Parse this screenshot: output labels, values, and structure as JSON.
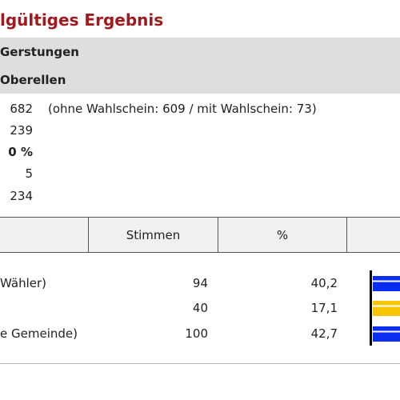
{
  "header": {
    "title": "lgültiges Ergebnis",
    "region": "Gerstungen",
    "district": "Oberellen"
  },
  "summary": [
    {
      "value": "682",
      "note": "(ohne Wahlschein: 609 / mit Wahlschein: 73)",
      "bold": false
    },
    {
      "value": "239",
      "note": "",
      "bold": false
    },
    {
      "value": "0 %",
      "note": "",
      "bold": true
    },
    {
      "value": "5",
      "note": "",
      "bold": false
    },
    {
      "value": "234",
      "note": "",
      "bold": false
    }
  ],
  "table": {
    "headers": {
      "votes": "Stimmen",
      "percent": "%"
    },
    "rows": [
      {
        "party": "Wähler)",
        "votes": "94",
        "percent": "40,2",
        "color": "#0a2ef0",
        "stripe": "#ffffff"
      },
      {
        "party": "",
        "votes": "40",
        "percent": "17,1",
        "color": "#f7c600",
        "stripe": "#ffffff"
      },
      {
        "party": "e Gemeinde)",
        "votes": "100",
        "percent": "42,7",
        "color": "#0a2ef0",
        "stripe": "#ffffff"
      }
    ]
  }
}
